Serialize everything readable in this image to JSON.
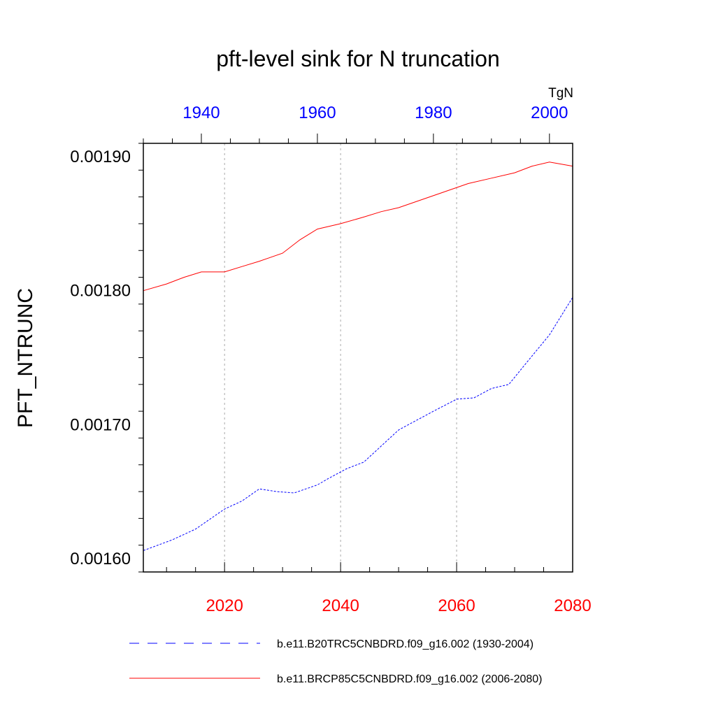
{
  "chart_data": {
    "type": "line",
    "title": "pft-level sink for N truncation",
    "ylabel": "PFT_NTRUNC",
    "units_label": "TgN",
    "ylim": [
      0.00159,
      0.00191
    ],
    "y_ticks": [
      "0.00160",
      "0.00170",
      "0.00180",
      "0.00190"
    ],
    "x_bottom": {
      "range": [
        2006,
        2080
      ],
      "ticks": [
        "2020",
        "2040",
        "2060",
        "2080"
      ],
      "color": "#ff0000"
    },
    "x_top": {
      "range": [
        1930,
        2004
      ],
      "ticks": [
        "1940",
        "1960",
        "1980",
        "2000"
      ],
      "color": "#0000ff"
    },
    "grid": "vertical dotted at bottom-axis major ticks",
    "legend_position": "bottom",
    "series": [
      {
        "name": "b.e11.B20TRC5CNBDRD.f09_g16.002 (1930-2004)",
        "axis": "top",
        "color": "#0000ff",
        "dash": "dashed",
        "x": [
          1930,
          1935,
          1939,
          1944,
          1947,
          1950,
          1953,
          1956,
          1960,
          1962,
          1965,
          1968,
          1971,
          1974,
          1977,
          1980,
          1984,
          1987,
          1990,
          1993,
          1996,
          2000,
          2004
        ],
        "y": [
          0.001606,
          0.001614,
          0.001622,
          0.001637,
          0.001643,
          0.001652,
          0.00165,
          0.001649,
          0.001655,
          0.00166,
          0.001667,
          0.001672,
          0.001684,
          0.001696,
          0.001703,
          0.00171,
          0.001719,
          0.00172,
          0.001727,
          0.00173,
          0.001746,
          0.001767,
          0.001795
        ]
      },
      {
        "name": "b.e11.BRCP85C5CNBDRD.f09_g16.002 (2006-2080)",
        "axis": "bottom",
        "color": "#ff0000",
        "dash": "solid",
        "x": [
          2006,
          2010,
          2013,
          2016,
          2020,
          2023,
          2026,
          2030,
          2033,
          2036,
          2040,
          2044,
          2047,
          2050,
          2054,
          2058,
          2062,
          2066,
          2070,
          2073,
          2076,
          2080
        ],
        "y": [
          0.0018,
          0.001805,
          0.00181,
          0.001814,
          0.001814,
          0.001818,
          0.001822,
          0.001828,
          0.001838,
          0.001846,
          0.00185,
          0.001855,
          0.001859,
          0.001862,
          0.001868,
          0.001874,
          0.00188,
          0.001884,
          0.001888,
          0.001893,
          0.001896,
          0.001893
        ]
      }
    ]
  }
}
